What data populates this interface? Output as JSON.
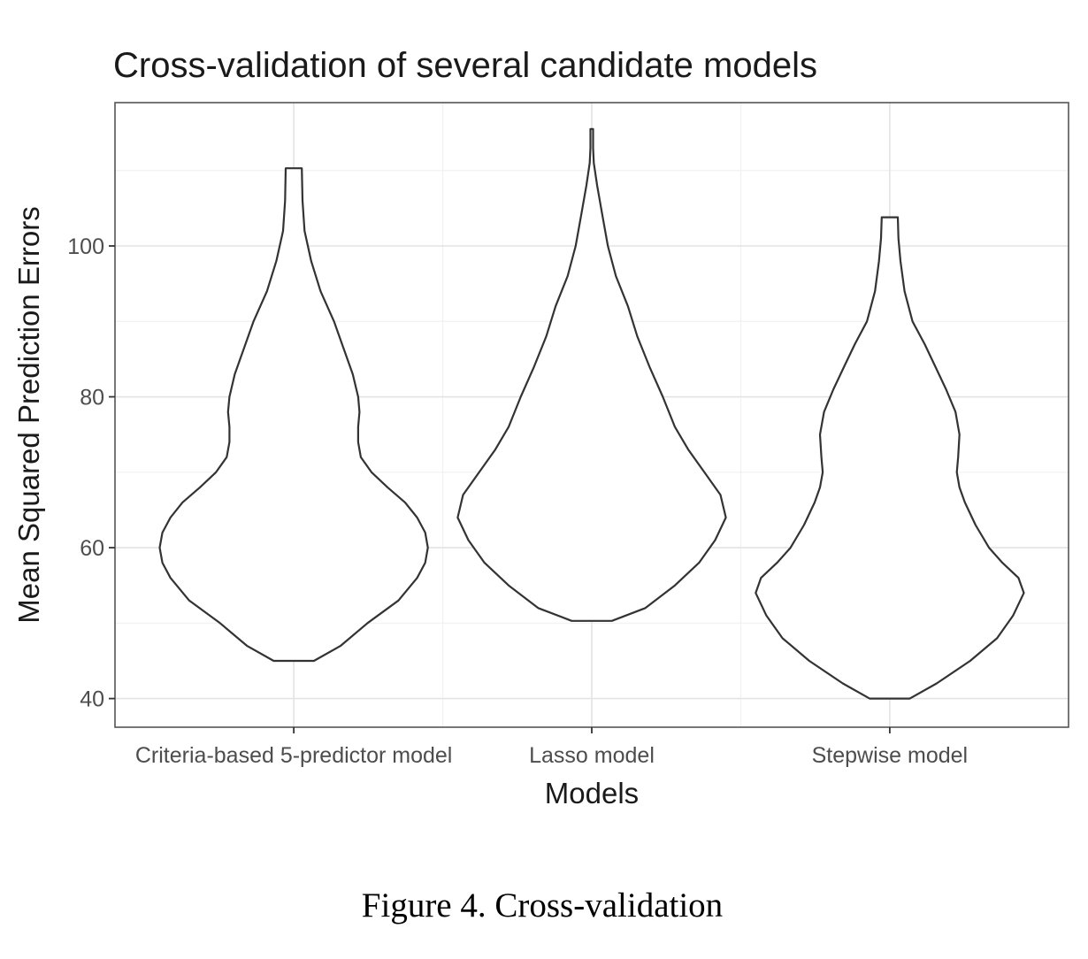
{
  "figure": {
    "caption": "Figure 4. Cross-validation"
  },
  "chart_data": {
    "type": "violin",
    "title": "Cross-validation of several candidate models",
    "xlabel": "Models",
    "ylabel": "Mean Squared Prediction Errors",
    "ylim": [
      36.2,
      119.0
    ],
    "y_ticks": [
      40,
      60,
      80,
      100
    ],
    "y_tick_labels": [
      "40",
      "60",
      "80",
      "100"
    ],
    "grid": true,
    "categories": [
      "Criteria-based 5-predictor model",
      "Lasso model",
      "Stepwise model"
    ],
    "series": [
      {
        "category": "Criteria-based 5-predictor model",
        "min": 45.0,
        "max": 110.3,
        "density_profile": [
          [
            45,
            0.15
          ],
          [
            47,
            0.35
          ],
          [
            50,
            0.55
          ],
          [
            53,
            0.78
          ],
          [
            56,
            0.92
          ],
          [
            58,
            0.98
          ],
          [
            60,
            1.0
          ],
          [
            62,
            0.98
          ],
          [
            64,
            0.92
          ],
          [
            66,
            0.83
          ],
          [
            68,
            0.7
          ],
          [
            70,
            0.58
          ],
          [
            72,
            0.5
          ],
          [
            74,
            0.48
          ],
          [
            76,
            0.48
          ],
          [
            78,
            0.49
          ],
          [
            80,
            0.48
          ],
          [
            83,
            0.44
          ],
          [
            86,
            0.38
          ],
          [
            90,
            0.3
          ],
          [
            94,
            0.2
          ],
          [
            98,
            0.13
          ],
          [
            102,
            0.08
          ],
          [
            106,
            0.065
          ],
          [
            110.3,
            0.06
          ]
        ]
      },
      {
        "category": "Lasso model",
        "min": 50.3,
        "max": 115.5,
        "density_profile": [
          [
            50.3,
            0.15
          ],
          [
            52,
            0.4
          ],
          [
            55,
            0.62
          ],
          [
            58,
            0.8
          ],
          [
            61,
            0.92
          ],
          [
            64,
            1.0
          ],
          [
            67,
            0.96
          ],
          [
            70,
            0.84
          ],
          [
            73,
            0.72
          ],
          [
            76,
            0.62
          ],
          [
            80,
            0.53
          ],
          [
            84,
            0.43
          ],
          [
            88,
            0.34
          ],
          [
            92,
            0.27
          ],
          [
            96,
            0.18
          ],
          [
            100,
            0.12
          ],
          [
            104,
            0.08
          ],
          [
            108,
            0.04
          ],
          [
            111,
            0.015
          ],
          [
            113,
            0.01
          ],
          [
            115.5,
            0.01
          ]
        ]
      },
      {
        "category": "Stepwise model",
        "min": 40.0,
        "max": 103.8,
        "density_profile": [
          [
            40,
            0.15
          ],
          [
            42,
            0.35
          ],
          [
            45,
            0.6
          ],
          [
            48,
            0.8
          ],
          [
            51,
            0.92
          ],
          [
            54,
            1.0
          ],
          [
            56,
            0.96
          ],
          [
            58,
            0.84
          ],
          [
            60,
            0.74
          ],
          [
            63,
            0.64
          ],
          [
            66,
            0.56
          ],
          [
            68,
            0.52
          ],
          [
            70,
            0.5
          ],
          [
            72,
            0.51
          ],
          [
            75,
            0.52
          ],
          [
            78,
            0.49
          ],
          [
            81,
            0.42
          ],
          [
            84,
            0.34
          ],
          [
            87,
            0.26
          ],
          [
            90,
            0.17
          ],
          [
            94,
            0.11
          ],
          [
            98,
            0.08
          ],
          [
            101,
            0.065
          ],
          [
            103.8,
            0.06
          ]
        ]
      }
    ]
  }
}
